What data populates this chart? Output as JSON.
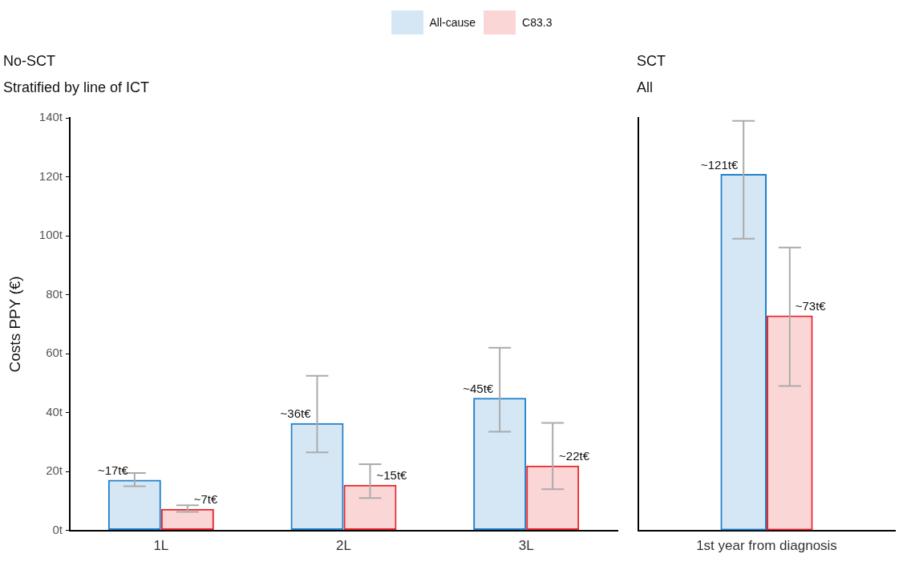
{
  "chart_data": [
    {
      "type": "bar",
      "title": "No-SCT",
      "subtitle": "Stratified by line of ICT",
      "ylabel": "Costs PPY (€)",
      "categories": [
        "1L",
        "2L",
        "3L"
      ],
      "legend": "top",
      "grid": false,
      "ylim": [
        0,
        140
      ],
      "yticks": [
        {
          "value": 0,
          "label": "0t"
        },
        {
          "value": 20,
          "label": "20t"
        },
        {
          "value": 40,
          "label": "40t"
        },
        {
          "value": 60,
          "label": "60t"
        },
        {
          "value": 80,
          "label": "80t"
        },
        {
          "value": 100,
          "label": "100t"
        },
        {
          "value": 120,
          "label": "120t"
        },
        {
          "value": 140,
          "label": "140t"
        }
      ],
      "series": [
        {
          "name": "All-cause",
          "color": "#1f7fc9",
          "values": [
            17.2,
            36.4,
            45
          ],
          "errors": [
            [
              15,
              19.5
            ],
            [
              26.5,
              52.5
            ],
            [
              33.5,
              62
            ]
          ],
          "value_labels": [
            "~17t€",
            "~36t€",
            "~45t€"
          ]
        },
        {
          "name": "C83.3",
          "color": "#e8262b",
          "values": [
            7.3,
            15.5,
            22
          ],
          "errors": [
            [
              6.3,
              8.5
            ],
            [
              11,
              22.5
            ],
            [
              14,
              36.5
            ]
          ],
          "value_labels": [
            "~7t€",
            "~15t€",
            "~22t€"
          ]
        }
      ]
    },
    {
      "type": "bar",
      "title": "SCT",
      "subtitle": "All",
      "categories": [
        "1st year from diagnosis"
      ],
      "grid": false,
      "tick_labels": "x",
      "ylim": [
        0,
        140
      ],
      "series": [
        {
          "color": "#1f7fc9",
          "values": [
            121
          ],
          "errors": [
            [
              99,
              139
            ]
          ],
          "value_labels": [
            "~121t€"
          ]
        },
        {
          "color": "#e8262b",
          "values": [
            73
          ],
          "errors": [
            [
              49,
              96
            ]
          ],
          "value_labels": [
            "~73t€"
          ]
        }
      ]
    }
  ]
}
